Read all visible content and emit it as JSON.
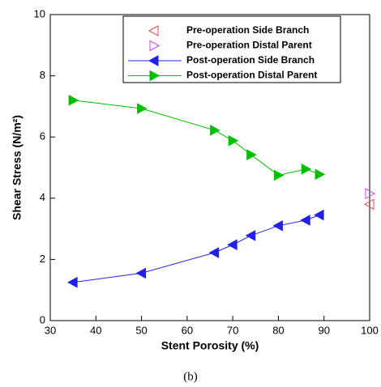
{
  "chart_data": {
    "type": "line",
    "xlabel": "Stent Porosity (%)",
    "ylabel": "Shear Stress (N/m²)",
    "caption": "(b)",
    "xlim": [
      30,
      100
    ],
    "xticks": [
      30,
      40,
      50,
      60,
      70,
      80,
      90,
      100
    ],
    "ylim": [
      0,
      10
    ],
    "yticks": [
      0,
      2,
      4,
      6,
      8,
      10
    ],
    "legend": "top-right",
    "series": [
      {
        "name": "Pre-operation Side Branch",
        "color": "#e04a5a",
        "marker": "triangle-left",
        "filled": false,
        "line": false,
        "x": [
          100
        ],
        "values": [
          3.8
        ]
      },
      {
        "name": "Pre-operation Distal Parent",
        "color": "#e040e0",
        "marker": "triangle-right",
        "filled": false,
        "line": false,
        "x": [
          100
        ],
        "values": [
          4.15
        ]
      },
      {
        "name": "Post-operation Side Branch",
        "color": "#2222e6",
        "marker": "triangle-left",
        "filled": true,
        "line": true,
        "x": [
          35,
          50,
          66,
          70,
          74,
          80,
          86,
          89
        ],
        "values": [
          1.25,
          1.55,
          2.22,
          2.48,
          2.78,
          3.1,
          3.28,
          3.45
        ]
      },
      {
        "name": "Post-operation Distal Parent",
        "color": "#00c000",
        "marker": "triangle-right",
        "filled": true,
        "line": true,
        "x": [
          35,
          50,
          66,
          70,
          74,
          80,
          86,
          89
        ],
        "values": [
          7.2,
          6.93,
          6.22,
          5.88,
          5.42,
          4.75,
          4.95,
          4.78
        ]
      }
    ]
  }
}
